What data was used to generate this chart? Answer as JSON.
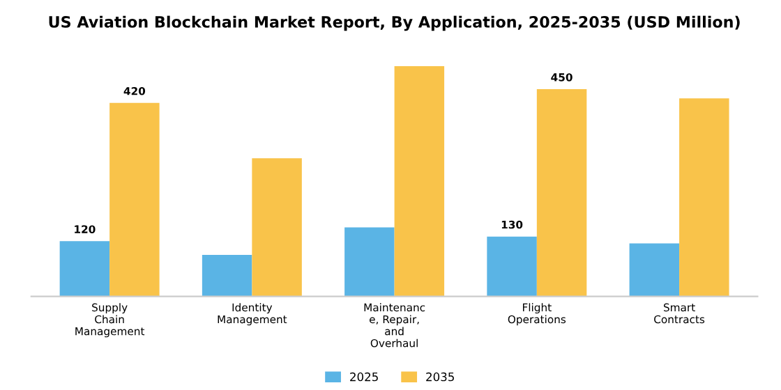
{
  "chart_data": {
    "type": "bar",
    "title": "US Aviation Blockchain Market Report, By Application, 2025-2035 (USD Million)",
    "categories": [
      "Supply\nChain\nManagement",
      "Identity\nManagement",
      "Maintenanc\ne, Repair,\nand\nOverhaul",
      "Flight\nOperations",
      "Smart\nContracts"
    ],
    "series": [
      {
        "name": "2025",
        "color": "#5ab4e5",
        "values": [
          120,
          90,
          150,
          130,
          115
        ],
        "value_labels": [
          "120",
          null,
          null,
          "130",
          null
        ]
      },
      {
        "name": "2035",
        "color": "#f9c34a",
        "values": [
          420,
          300,
          500,
          450,
          430
        ],
        "value_labels": [
          "420",
          null,
          null,
          "450",
          null
        ]
      }
    ],
    "legend": "bottom",
    "grid": false
  }
}
